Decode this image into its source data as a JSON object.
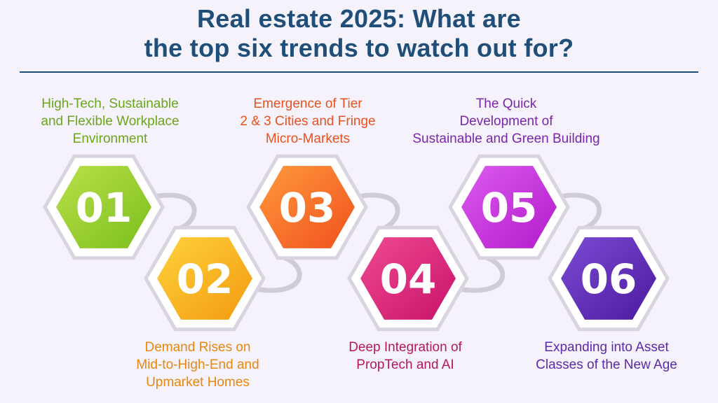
{
  "title": {
    "line1": "Real estate 2025: What are",
    "line2": "the top six trends to watch out for?"
  },
  "trends": [
    {
      "number": "01",
      "label_lines": [
        "High-Tech, Sustainable",
        "and Flexible Workplace",
        "Environment"
      ],
      "color": "#7cbf1e",
      "color_light": "#b9e04a",
      "label_color": "#6aa51c"
    },
    {
      "number": "02",
      "label_lines": [
        "Demand Rises on",
        "Mid-to-High-End and",
        "Upmarket Homes"
      ],
      "color": "#f29a0f",
      "color_light": "#ffd23c",
      "label_color": "#e8870f"
    },
    {
      "number": "03",
      "label_lines": [
        "Emergence of Tier",
        "2 & 3 Cities and Fringe",
        "Micro-Markets"
      ],
      "color": "#f0501e",
      "color_light": "#ff9a3c",
      "label_color": "#e8521e"
    },
    {
      "number": "04",
      "label_lines": [
        "Deep Integration of",
        "PropTech and AI"
      ],
      "color": "#c8136a",
      "color_light": "#f04a92",
      "label_color": "#b5175e"
    },
    {
      "number": "05",
      "label_lines": [
        "The Quick",
        "Development of",
        "Sustainable and Green Building"
      ],
      "color": "#b21bc9",
      "color_light": "#dc5af0",
      "label_color": "#7a26a8"
    },
    {
      "number": "06",
      "label_lines": [
        "Expanding into Asset",
        "Classes of the New Age"
      ],
      "color": "#4b1a9e",
      "color_light": "#7c4bd4",
      "label_color": "#5a2aa8"
    }
  ],
  "colors": {
    "title": "#1f4e79",
    "background": "#f6f2fb",
    "hex_frame": "#d9d4e0",
    "connector": "#d0cbd8"
  }
}
